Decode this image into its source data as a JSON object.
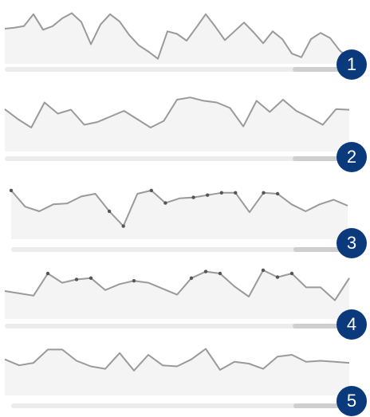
{
  "badge_color": "#0b3a7c",
  "line_color": "#9a9a9a",
  "area_color": "#f4f4f4",
  "marker_color": "#555555",
  "panels": [
    {
      "badge_label": "1",
      "slider_window": [
        0.84,
        1.0
      ],
      "values": [
        0.4,
        0.38,
        0.35,
        0.12,
        0.42,
        0.35,
        0.2,
        0.1,
        0.27,
        0.7,
        0.32,
        0.12,
        0.26,
        0.52,
        0.72,
        0.84,
        0.98,
        0.45,
        0.5,
        0.63,
        0.38,
        0.12,
        0.36,
        0.62,
        0.45,
        0.28,
        0.47,
        0.68,
        0.45,
        0.6,
        0.88,
        0.95,
        0.6,
        0.48,
        0.58,
        0.82,
        0.98
      ],
      "markers": []
    },
    {
      "badge_label": "2",
      "slider_window": [
        0.84,
        1.0
      ],
      "values": [
        0.27,
        0.45,
        0.6,
        0.15,
        0.35,
        0.28,
        0.55,
        0.5,
        0.4,
        0.3,
        0.45,
        0.6,
        0.48,
        0.1,
        0.06,
        0.12,
        0.15,
        0.25,
        0.58,
        0.12,
        0.32,
        0.1,
        0.3,
        0.42,
        0.55,
        0.27,
        0.28
      ],
      "markers": []
    },
    {
      "badge_label": "3",
      "slider_window": [
        0.84,
        1.0
      ],
      "values": [
        0.05,
        0.4,
        0.5,
        0.35,
        0.33,
        0.18,
        0.12,
        0.5,
        0.82,
        0.12,
        0.05,
        0.32,
        0.22,
        0.2,
        0.15,
        0.1,
        0.1,
        0.52,
        0.1,
        0.12,
        0.35,
        0.5,
        0.35,
        0.25,
        0.38
      ],
      "markers": [
        0,
        7,
        8,
        10,
        11,
        13,
        14,
        15,
        16,
        18,
        19
      ]
    },
    {
      "badge_label": "4",
      "slider_window": [
        0.84,
        1.0
      ],
      "values": [
        0.5,
        0.55,
        0.6,
        0.12,
        0.32,
        0.25,
        0.22,
        0.48,
        0.35,
        0.28,
        0.32,
        0.45,
        0.58,
        0.22,
        0.08,
        0.12,
        0.4,
        0.62,
        0.05,
        0.2,
        0.12,
        0.42,
        0.42,
        0.7,
        0.22
      ],
      "markers": [
        3,
        5,
        6,
        9,
        13,
        14,
        15,
        18,
        19,
        20
      ]
    },
    {
      "badge_label": "5",
      "slider_window": [
        0.84,
        1.0
      ],
      "values": [
        0.38,
        0.55,
        0.48,
        0.1,
        0.1,
        0.42,
        0.58,
        0.65,
        0.2,
        0.7,
        0.25,
        0.55,
        0.58,
        0.38,
        0.08,
        0.68,
        0.45,
        0.5,
        0.65,
        0.3,
        0.25,
        0.45,
        0.42,
        0.45,
        0.48
      ],
      "markers": []
    }
  ]
}
